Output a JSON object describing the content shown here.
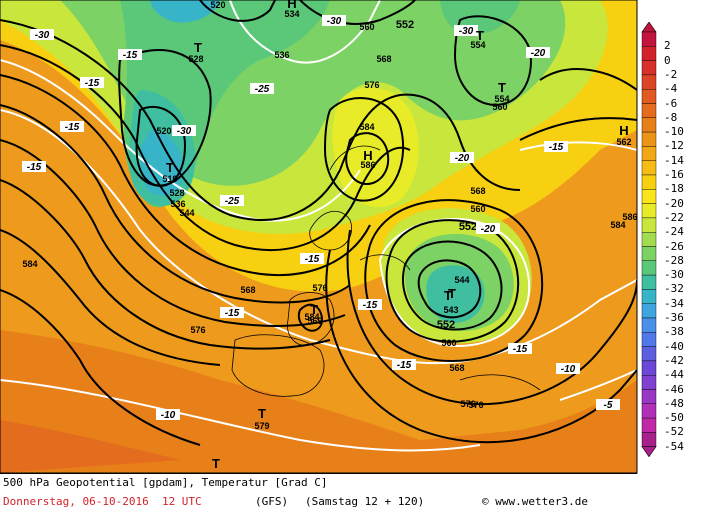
{
  "header": {
    "line1": "500 hPa Geopotential [gpdam], Temperatur [Grad C]",
    "line2_date": "Donnerstag, 06-10-2016  12 UTC",
    "line2_model": "(GFS)",
    "line2_valid": "(Samstag 12 + 120)",
    "line2_credit": "© www.wetter3.de"
  },
  "legend": {
    "values": [
      "2",
      "0",
      "-2",
      "-4",
      "-6",
      "-8",
      "-10",
      "-12",
      "-14",
      "-16",
      "-18",
      "-20",
      "-22",
      "-24",
      "-26",
      "-28",
      "-30",
      "-32",
      "-34",
      "-36",
      "-38",
      "-40",
      "-42",
      "-44",
      "-46",
      "-48",
      "-50",
      "-52",
      "-54"
    ],
    "colors": [
      "#c0143c",
      "#d2232a",
      "#d8302a",
      "#dc4426",
      "#e05a22",
      "#e46c1e",
      "#e8801a",
      "#ec9418",
      "#f0a816",
      "#f4bc14",
      "#f8d012",
      "#fae41c",
      "#e8ec28",
      "#c8e63c",
      "#a4dc50",
      "#7cd264",
      "#5ac878",
      "#40bea0",
      "#38b4c8",
      "#40a4e0",
      "#4890e8",
      "#5078e8",
      "#5c60e0",
      "#6c48d8",
      "#8040d0",
      "#9838c4",
      "#b030b8",
      "#c028a8",
      "#a8208c"
    ]
  },
  "map_labels": {
    "geopotential": [
      "520",
      "534",
      "552",
      "560",
      "554",
      "528",
      "536",
      "568",
      "520",
      "576",
      "554",
      "560",
      "519",
      "584",
      "528",
      "536",
      "544",
      "586",
      "562",
      "552",
      "568",
      "584",
      "560",
      "586",
      "576",
      "584",
      "568",
      "544",
      "543",
      "569",
      "576",
      "552",
      "560",
      "568",
      "576",
      "579",
      "576",
      "584"
    ],
    "temperature": [
      "-30",
      "-15",
      "-30",
      "-15",
      "-30",
      "-25",
      "-30",
      "-15",
      "-15",
      "-20",
      "-20",
      "-25",
      "-15",
      "-20",
      "-15",
      "-15",
      "-15",
      "-15",
      "-15",
      "-10",
      "-10",
      "-5"
    ],
    "pressure_centers": [
      "H",
      "T",
      "T",
      "T",
      "T",
      "H",
      "H",
      "T",
      "T",
      "T",
      "T",
      "T"
    ]
  }
}
